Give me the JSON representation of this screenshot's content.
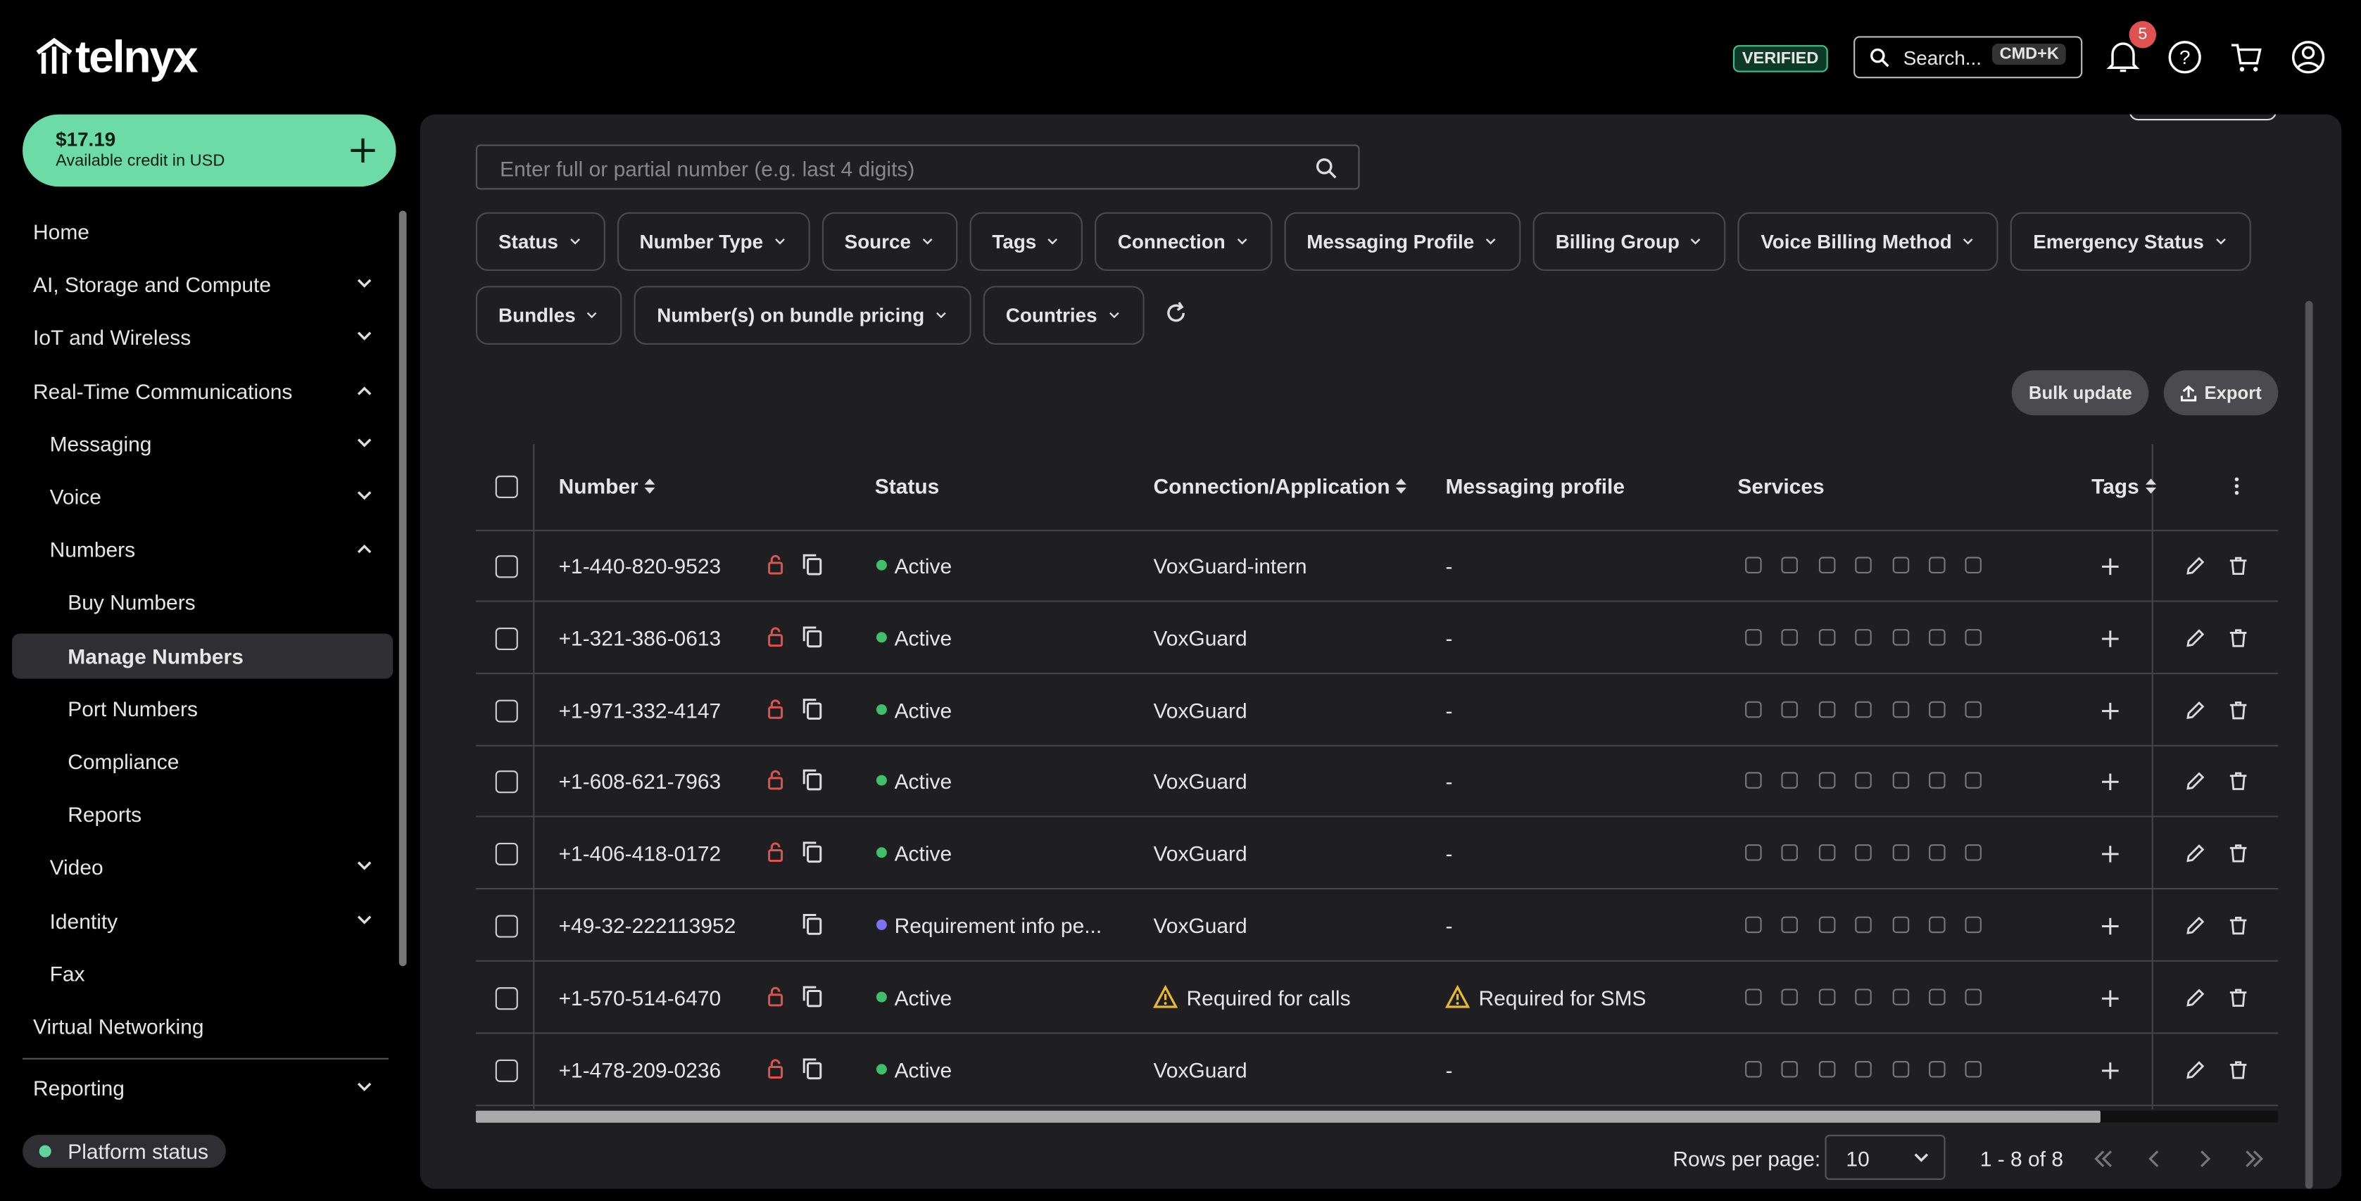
{
  "header": {
    "logo": "telnyx",
    "verified": "VERIFIED",
    "search": "Search...",
    "shortcut": "CMD+K",
    "notifications": "5"
  },
  "sidebar": {
    "balance": "$17.19",
    "balance_label": "Available credit in USD",
    "nav": [
      {
        "label": "Home",
        "indent": 0
      },
      {
        "label": "AI, Storage and Compute",
        "indent": 0,
        "arrow": "down"
      },
      {
        "label": "IoT and Wireless",
        "indent": 0,
        "arrow": "down"
      },
      {
        "label": "Real-Time Communications",
        "indent": 0,
        "arrow": "up"
      },
      {
        "label": "Messaging",
        "indent": 1,
        "arrow": "down"
      },
      {
        "label": "Voice",
        "indent": 1,
        "arrow": "down"
      },
      {
        "label": "Numbers",
        "indent": 1,
        "arrow": "up"
      },
      {
        "label": "Buy Numbers",
        "indent": 2
      },
      {
        "label": "Manage Numbers",
        "indent": 2,
        "active": true
      },
      {
        "label": "Port Numbers",
        "indent": 2
      },
      {
        "label": "Compliance",
        "indent": 2
      },
      {
        "label": "Reports",
        "indent": 2
      },
      {
        "label": "Video",
        "indent": 1,
        "arrow": "down"
      },
      {
        "label": "Identity",
        "indent": 1,
        "arrow": "down"
      },
      {
        "label": "Fax",
        "indent": 1
      },
      {
        "label": "Virtual Networking",
        "indent": 0
      }
    ],
    "reporting": "Reporting",
    "platform_status": "Platform status"
  },
  "filters": {
    "search_placeholder": "Enter full or partial number (e.g. last 4 digits)",
    "rows": [
      [
        "Status",
        "Number Type",
        "Source",
        "Tags",
        "Connection",
        "Messaging Profile",
        "Billing Group",
        "Voice Billing Method",
        "Emergency Status"
      ],
      [
        "Bundles",
        "Number(s) on bundle pricing",
        "Countries"
      ]
    ]
  },
  "actions": [
    "Bulk update",
    "Export"
  ],
  "table": {
    "columns": [
      {
        "label": "Number",
        "sortable": true
      },
      {
        "label": "Status"
      },
      {
        "label": "Connection/Application",
        "sortable": true
      },
      {
        "label": "Messaging profile"
      },
      {
        "label": "Services"
      },
      {
        "label": "Tags",
        "sortable": true
      }
    ],
    "rows": [
      {
        "number": "+1-440-820-9523",
        "locked": true,
        "status": "Active",
        "status_color": "#3fbf6a",
        "connection": "VoxGuard-intern",
        "messaging": "-"
      },
      {
        "number": "+1-321-386-0613",
        "locked": true,
        "status": "Active",
        "status_color": "#3fbf6a",
        "connection": "VoxGuard",
        "messaging": "-"
      },
      {
        "number": "+1-971-332-4147",
        "locked": true,
        "status": "Active",
        "status_color": "#3fbf6a",
        "connection": "VoxGuard",
        "messaging": "-"
      },
      {
        "number": "+1-608-621-7963",
        "locked": true,
        "status": "Active",
        "status_color": "#3fbf6a",
        "connection": "VoxGuard",
        "messaging": "-"
      },
      {
        "number": "+1-406-418-0172",
        "locked": true,
        "status": "Active",
        "status_color": "#3fbf6a",
        "connection": "VoxGuard",
        "messaging": "-"
      },
      {
        "number": "+49-32-222113952",
        "status": "Requirement info pe...",
        "status_color": "#7a72f0",
        "connection": "VoxGuard",
        "messaging": "-"
      },
      {
        "number": "+1-570-514-6470",
        "locked": true,
        "status": "Active",
        "status_color": "#3fbf6a",
        "connection": "Required for calls",
        "connection_warning": true,
        "messaging": "Required for SMS",
        "messaging_warning": true
      },
      {
        "number": "+1-478-209-0236",
        "locked": true,
        "status": "Active",
        "status_color": "#3fbf6a",
        "connection": "VoxGuard",
        "messaging": "-"
      }
    ]
  },
  "pagination": {
    "rows_per_page_label": "Rows per page:",
    "rows_per_page": "10",
    "range": "1 - 8 of 8"
  }
}
